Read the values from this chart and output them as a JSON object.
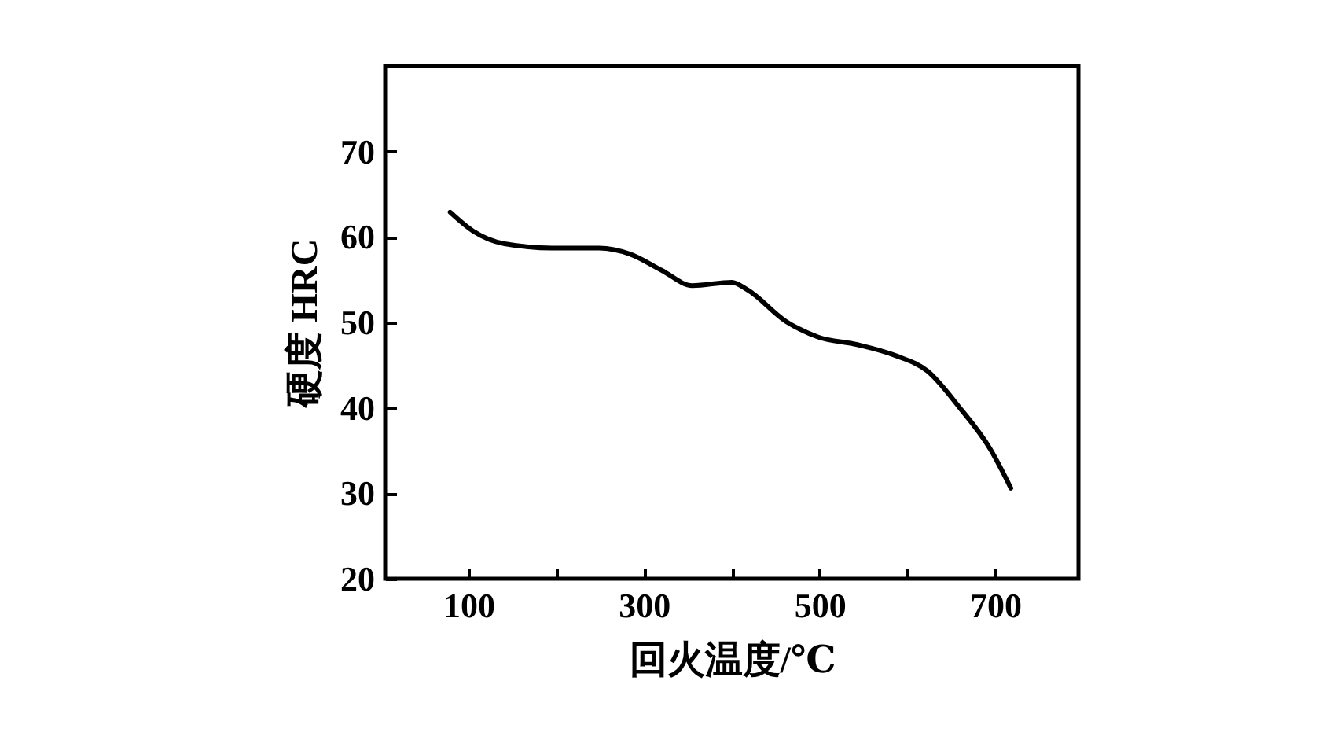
{
  "chart_data": {
    "type": "line",
    "xlabel": "回火温度/℃",
    "ylabel": "硬度 HRC",
    "xlim": [
      5,
      795
    ],
    "xticks": [
      100,
      {
        "value": 200,
        "label": null
      },
      300,
      {
        "value": 400,
        "label": null
      },
      500,
      {
        "value": 600,
        "label": null
      },
      700
    ],
    "ylim": [
      20,
      80
    ],
    "yticks": [
      20,
      30,
      40,
      50,
      60,
      70
    ],
    "grid": false,
    "marker": "none",
    "line_style": "solid",
    "series": [
      {
        "color": "#000000",
        "x": [
          79,
          105,
          141,
          195,
          248,
          284,
          320,
          355,
          400,
          418,
          462,
          498,
          543,
          587,
          623,
          659,
          695,
          718
        ],
        "values": [
          62.9,
          60.7,
          59.2,
          58.7,
          58.7,
          58.0,
          56.1,
          54.3,
          54.7,
          53.8,
          50.1,
          48.3,
          47.4,
          46.1,
          44.3,
          40.1,
          35.1,
          30.6
        ]
      }
    ]
  }
}
